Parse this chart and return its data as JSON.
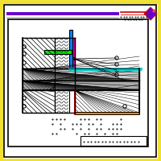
{
  "bg_color": "#ffffff",
  "outer_border_color": "#f0e030",
  "inner_border_color": "#000000",
  "purple_line_color": "#6600cc",
  "red_text_color": "#cc0000",
  "diamond_color": "#6600cc",
  "diamond_edge": "#cc0000",
  "wall_hatch_color": "#c8c8c8",
  "slab_hatch_color": "#b8b8b8",
  "insulation_color": "#e0e0e0",
  "blue_strip_color": "#0088ff",
  "magenta_strip_color": "#ee00aa",
  "green_bar_color": "#00ee00",
  "cyan_line_color": "#00cccc",
  "orange_strip_color": "#ff8800",
  "dark_slab_color": "#888888"
}
